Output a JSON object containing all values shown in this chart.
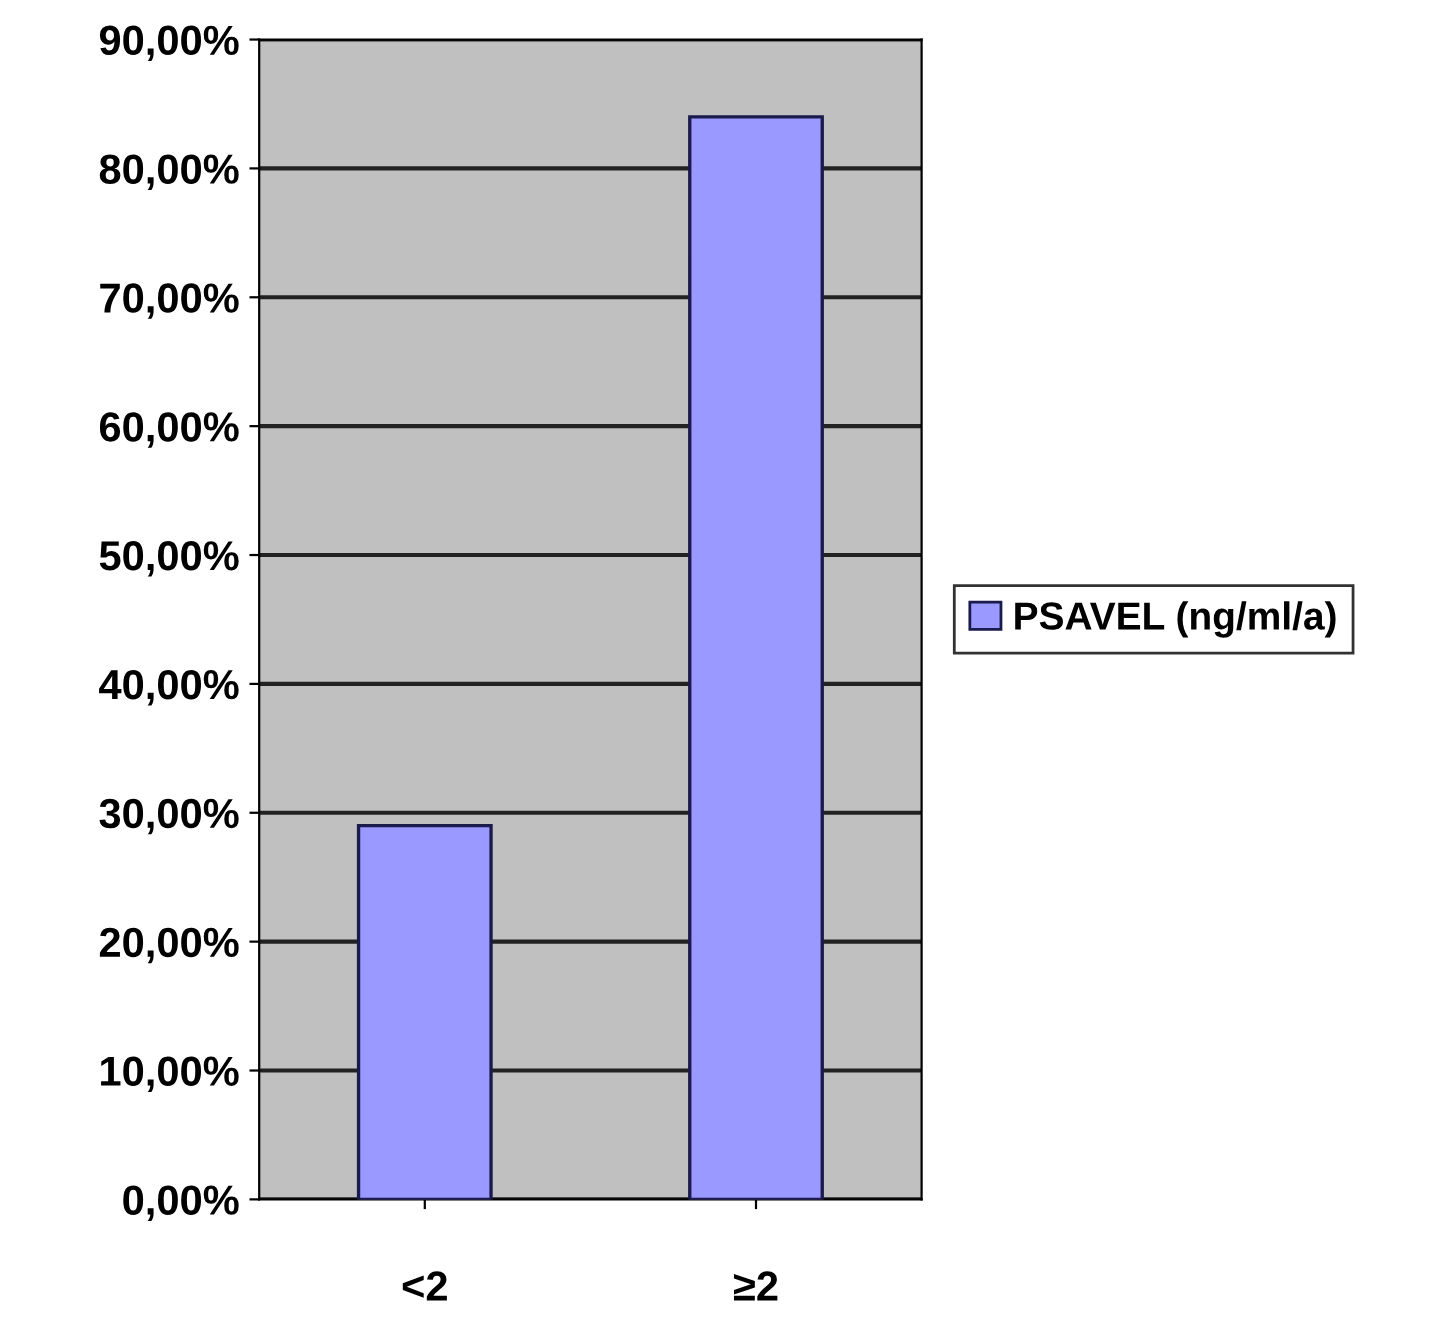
{
  "chart_data": {
    "type": "bar",
    "categories": [
      "<2",
      "≥2"
    ],
    "series": [
      {
        "name": "PSAVEL (ng/ml/a)",
        "color": "#9999ff",
        "values": [
          29,
          84
        ]
      }
    ],
    "ylim": [
      0,
      90
    ],
    "yticks": [
      {
        "value": 0,
        "label": "0,00%"
      },
      {
        "value": 10,
        "label": "10,00%"
      },
      {
        "value": 20,
        "label": "20,00%"
      },
      {
        "value": 30,
        "label": "30,00%"
      },
      {
        "value": 40,
        "label": "40,00%"
      },
      {
        "value": 50,
        "label": "50,00%"
      },
      {
        "value": 60,
        "label": "60,00%"
      },
      {
        "value": 70,
        "label": "70,00%"
      },
      {
        "value": 80,
        "label": "80,00%"
      },
      {
        "value": 90,
        "label": "90,00%"
      }
    ],
    "grid": "y",
    "legend": "right"
  }
}
